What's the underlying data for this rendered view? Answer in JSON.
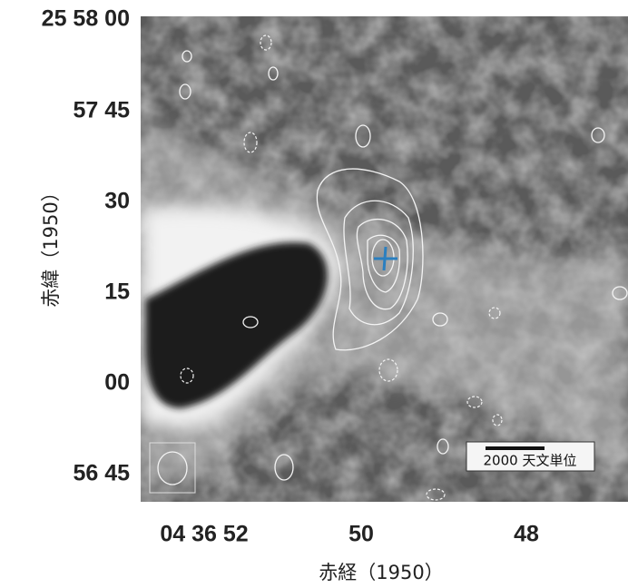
{
  "y_axis": {
    "title": "赤緯（1950）",
    "ticks": [
      "25 58 00",
      "57 45",
      "30",
      "15",
      "00",
      "56 45"
    ]
  },
  "x_axis": {
    "title": "赤経（1950）",
    "ticks": [
      "04 36 52",
      "50",
      "48"
    ]
  },
  "scale_bar": {
    "label": "2000 天文単位"
  }
}
